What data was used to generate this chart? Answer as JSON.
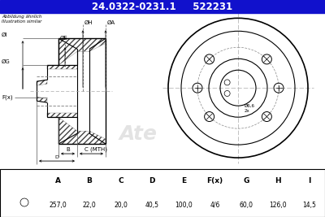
{
  "header_text": "24.0322-0231.1     522231",
  "header_bg": "#1111cc",
  "header_text_color": "#ffffff",
  "note_line1": "Abbildung ähnlich",
  "note_line2": "Illustration similar",
  "table_headers": [
    "A",
    "B",
    "C",
    "D",
    "E",
    "F(x)",
    "G",
    "H",
    "I"
  ],
  "table_values": [
    "257,0",
    "22,0",
    "20,0",
    "40,5",
    "100,0",
    "4/6",
    "60,0",
    "126,0",
    "14,5"
  ],
  "bg_color": "#ffffff",
  "line_color": "#000000",
  "dim_color": "#000000",
  "hatch_color": "#444444",
  "center_line_color": "#aaaaaa",
  "watermark_color": "#d8d8d8"
}
